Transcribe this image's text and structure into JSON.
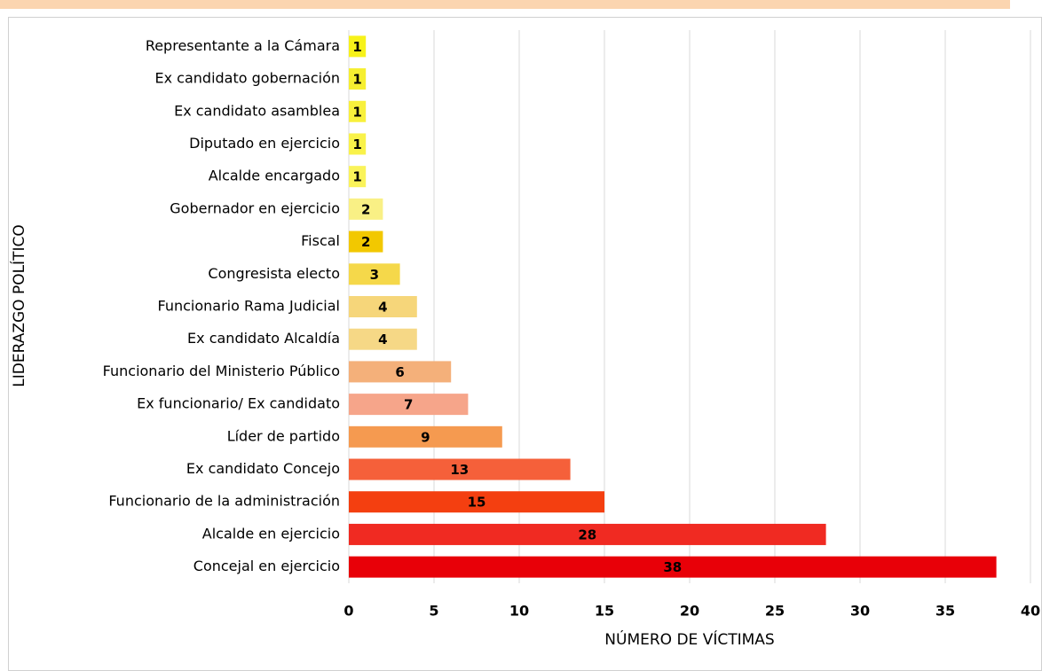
{
  "chart_data": {
    "type": "barh",
    "xlabel": "NÚMERO DE VÍCTIMAS",
    "ylabel": "LIDERAZGO POLÍTICO",
    "categories": [
      "Representante a la Cámara",
      "Ex candidato gobernación",
      "Ex candidato asamblea",
      "Diputado en ejercicio",
      "Alcalde encargado",
      "Gobernador en ejercicio",
      "Fiscal",
      "Congresista electo",
      "Funcionario Rama Judicial",
      "Ex candidato Alcaldía",
      "Funcionario del Ministerio Público",
      "Ex funcionario/ Ex candidato",
      "Líder de partido",
      "Ex candidato Concejo",
      "Funcionario de la administración",
      "Alcalde en ejercicio",
      "Concejal en ejercicio"
    ],
    "values": [
      1,
      1,
      1,
      1,
      1,
      2,
      2,
      3,
      4,
      4,
      6,
      7,
      9,
      13,
      15,
      28,
      38
    ],
    "colors": [
      "#f7f21a",
      "#f6ef30",
      "#f8f03c",
      "#f9f24a",
      "#faf35a",
      "#f9f085",
      "#f2c800",
      "#f5d84a",
      "#f6d67a",
      "#f6d886",
      "#f4b07a",
      "#f6a58a",
      "#f59a50",
      "#f5603a",
      "#f43f10",
      "#f02a22",
      "#e80008"
    ],
    "xlim": [
      0,
      40
    ],
    "xticks": [
      0,
      5,
      10,
      15,
      20,
      25,
      30,
      35,
      40
    ],
    "grid": true
  }
}
